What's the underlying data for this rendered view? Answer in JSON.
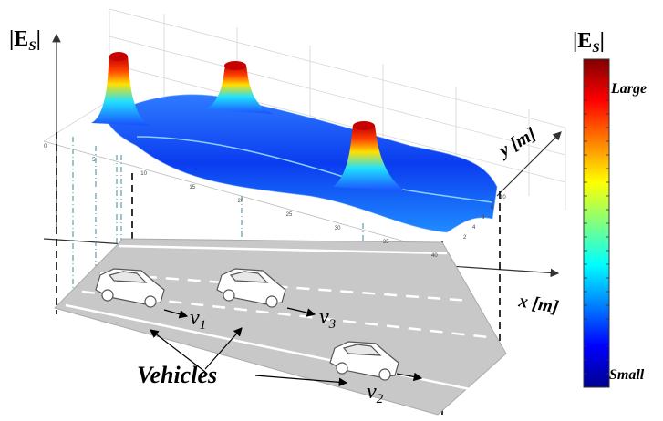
{
  "left_axis_label": {
    "main": "|E",
    "sub": "S",
    "end": "|"
  },
  "y_axis_label": "y [m]",
  "x_axis_label": "x [m]",
  "x_ticks": [
    0,
    5,
    10,
    15,
    20,
    25,
    30,
    35,
    40
  ],
  "y_ticks": [
    2,
    4,
    6,
    8,
    10
  ],
  "velocities": [
    {
      "letter": "v",
      "sub": "1"
    },
    {
      "letter": "v",
      "sub": "3"
    },
    {
      "letter": "v",
      "sub": "2"
    }
  ],
  "vehicles_label": "Vehicles",
  "colorbar": {
    "title": {
      "main": "|E",
      "sub": "S",
      "end": "|"
    },
    "high_label": "Large",
    "low_label": "Small"
  }
}
